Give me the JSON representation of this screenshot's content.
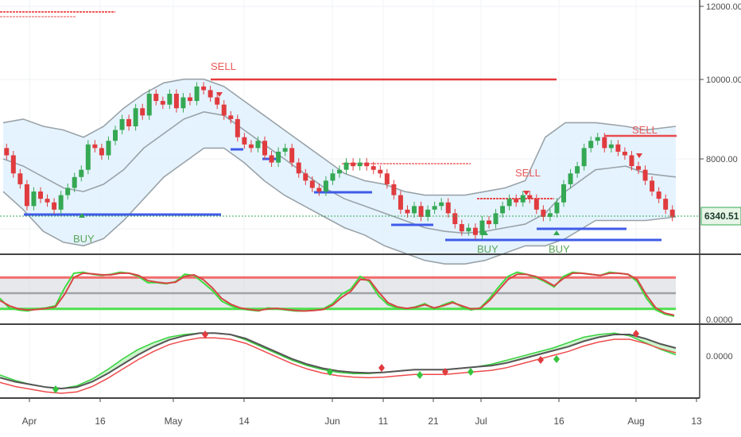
{
  "chart_data": {
    "type": "candlestick",
    "price_panel": {
      "y_ticks": [
        "12000.00",
        "10000.00",
        "8000.00"
      ],
      "ylim": [
        5400,
        12200
      ],
      "last_price": "6340.51",
      "bollinger": {
        "x": [
          0,
          4,
          8,
          12,
          16,
          20,
          24,
          28,
          32,
          36,
          40,
          44,
          48,
          52,
          56,
          60,
          64,
          68,
          72,
          76,
          80,
          84,
          88,
          92,
          96,
          100,
          104,
          108,
          112,
          118,
          124,
          128,
          134
        ],
        "upper": [
          8900,
          9000,
          8800,
          8700,
          8500,
          8800,
          9300,
          9700,
          10000,
          10100,
          10100,
          9900,
          9500,
          9100,
          8700,
          8300,
          7900,
          7500,
          7300,
          7200,
          7000,
          6900,
          6900,
          6900,
          7000,
          7100,
          7300,
          8500,
          8900,
          8900,
          8800,
          8700,
          8800
        ],
        "middle": [
          7900,
          7700,
          7400,
          7100,
          7000,
          7200,
          7600,
          8200,
          8600,
          9000,
          9200,
          9100,
          8700,
          8300,
          7900,
          7500,
          7100,
          6800,
          6600,
          6400,
          6200,
          6000,
          5900,
          5850,
          5900,
          6000,
          6100,
          6400,
          7000,
          7600,
          7700,
          7500,
          7400
        ],
        "lower": [
          7000,
          6500,
          5900,
          5600,
          5500,
          5700,
          6200,
          6800,
          7400,
          7800,
          8200,
          8200,
          7800,
          7300,
          6900,
          6600,
          6300,
          6000,
          5800,
          5500,
          5300,
          5100,
          5000,
          5000,
          5100,
          5300,
          5500,
          5500,
          5700,
          6200,
          6200,
          6200,
          6300
        ]
      },
      "candles_close": [
        8000,
        7500,
        7200,
        6600,
        7000,
        6800,
        6700,
        6500,
        6900,
        7100,
        7400,
        7600,
        8300,
        8200,
        8000,
        8400,
        8700,
        9000,
        8800,
        9300,
        9100,
        9700,
        9500,
        9400,
        9700,
        9300,
        9600,
        9500,
        9900,
        9800,
        9600,
        9400,
        9100,
        9000,
        8500,
        8300,
        8200,
        8400,
        8000,
        7800,
        8100,
        8200,
        7800,
        7500,
        7300,
        7100,
        7000,
        7300,
        7500,
        7600,
        7800,
        7700,
        7800,
        7700,
        7600,
        7500,
        7200,
        6900,
        6500,
        6400,
        6600,
        6300,
        6500,
        6600,
        6700,
        6400,
        6100,
        5900,
        6000,
        5800,
        6200,
        6100,
        6400,
        6600,
        6800,
        6700,
        6900,
        6800,
        6500,
        6300,
        6400,
        6700,
        7200,
        7500,
        7700,
        8200,
        8400,
        8500,
        8200,
        8300,
        8100,
        8000,
        7700,
        7600,
        7300,
        7000,
        6800,
        6500,
        6300
      ],
      "signals": [
        {
          "label": "SELL",
          "type": "sell"
        },
        {
          "label": "SELL",
          "type": "sell"
        },
        {
          "label": "SELL",
          "type": "sell"
        },
        {
          "label": "BUY",
          "type": "buy"
        },
        {
          "label": "BUY",
          "type": "buy"
        },
        {
          "label": "BUY",
          "type": "buy"
        }
      ]
    },
    "stoch_panel": {
      "y_ticks": [
        "0.0000"
      ],
      "k": [
        40,
        22,
        18,
        16,
        20,
        22,
        26,
        60,
        88,
        90,
        86,
        84,
        86,
        90,
        88,
        82,
        70,
        70,
        68,
        72,
        86,
        84,
        70,
        55,
        35,
        26,
        20,
        18,
        16,
        22,
        20,
        18,
        16,
        16,
        18,
        20,
        30,
        48,
        58,
        82,
        72,
        45,
        28,
        22,
        20,
        24,
        30,
        20,
        28,
        34,
        24,
        18,
        22,
        40,
        62,
        82,
        90,
        86,
        80,
        72,
        62,
        82,
        90,
        88,
        86,
        84,
        90,
        88,
        86,
        72,
        40,
        18,
        10,
        6
      ],
      "d": [
        36,
        26,
        20,
        18,
        19,
        21,
        24,
        48,
        80,
        88,
        87,
        85,
        85,
        88,
        88,
        84,
        74,
        71,
        69,
        71,
        82,
        85,
        76,
        60,
        40,
        29,
        22,
        19,
        17,
        20,
        21,
        19,
        17,
        16,
        17,
        19,
        27,
        42,
        54,
        76,
        75,
        52,
        32,
        24,
        21,
        23,
        28,
        22,
        26,
        32,
        26,
        20,
        21,
        36,
        56,
        76,
        86,
        86,
        82,
        74,
        64,
        78,
        88,
        88,
        86,
        84,
        88,
        88,
        86,
        76,
        46,
        22,
        12,
        8
      ],
      "upper_band": 80,
      "lower_band": 20
    },
    "osc_panel": {
      "y_ticks": [
        "0.0000"
      ],
      "fast": [
        -20,
        -28,
        -34,
        -38,
        -40,
        -36,
        -26,
        -12,
        4,
        18,
        28,
        36,
        40,
        42,
        42,
        40,
        32,
        22,
        12,
        2,
        -6,
        -12,
        -16,
        -18,
        -18,
        -16,
        -14,
        -12,
        -12,
        -12,
        -10,
        -8,
        -4,
        2,
        8,
        14,
        20,
        28,
        36,
        40,
        42,
        38,
        28,
        18,
        10
      ],
      "slow": [
        -24,
        -30,
        -34,
        -38,
        -40,
        -38,
        -30,
        -18,
        -4,
        10,
        22,
        32,
        38,
        42,
        42,
        40,
        34,
        24,
        14,
        4,
        -4,
        -10,
        -14,
        -16,
        -17,
        -16,
        -14,
        -12,
        -12,
        -12,
        -10,
        -8,
        -6,
        -2,
        4,
        10,
        16,
        22,
        30,
        36,
        40,
        40,
        34,
        26,
        20
      ]
    },
    "x_ticks": [
      "Apr",
      "16",
      "May",
      "14",
      "Jun",
      "11",
      "21",
      "Jul",
      "16",
      "Aug",
      "13"
    ]
  }
}
